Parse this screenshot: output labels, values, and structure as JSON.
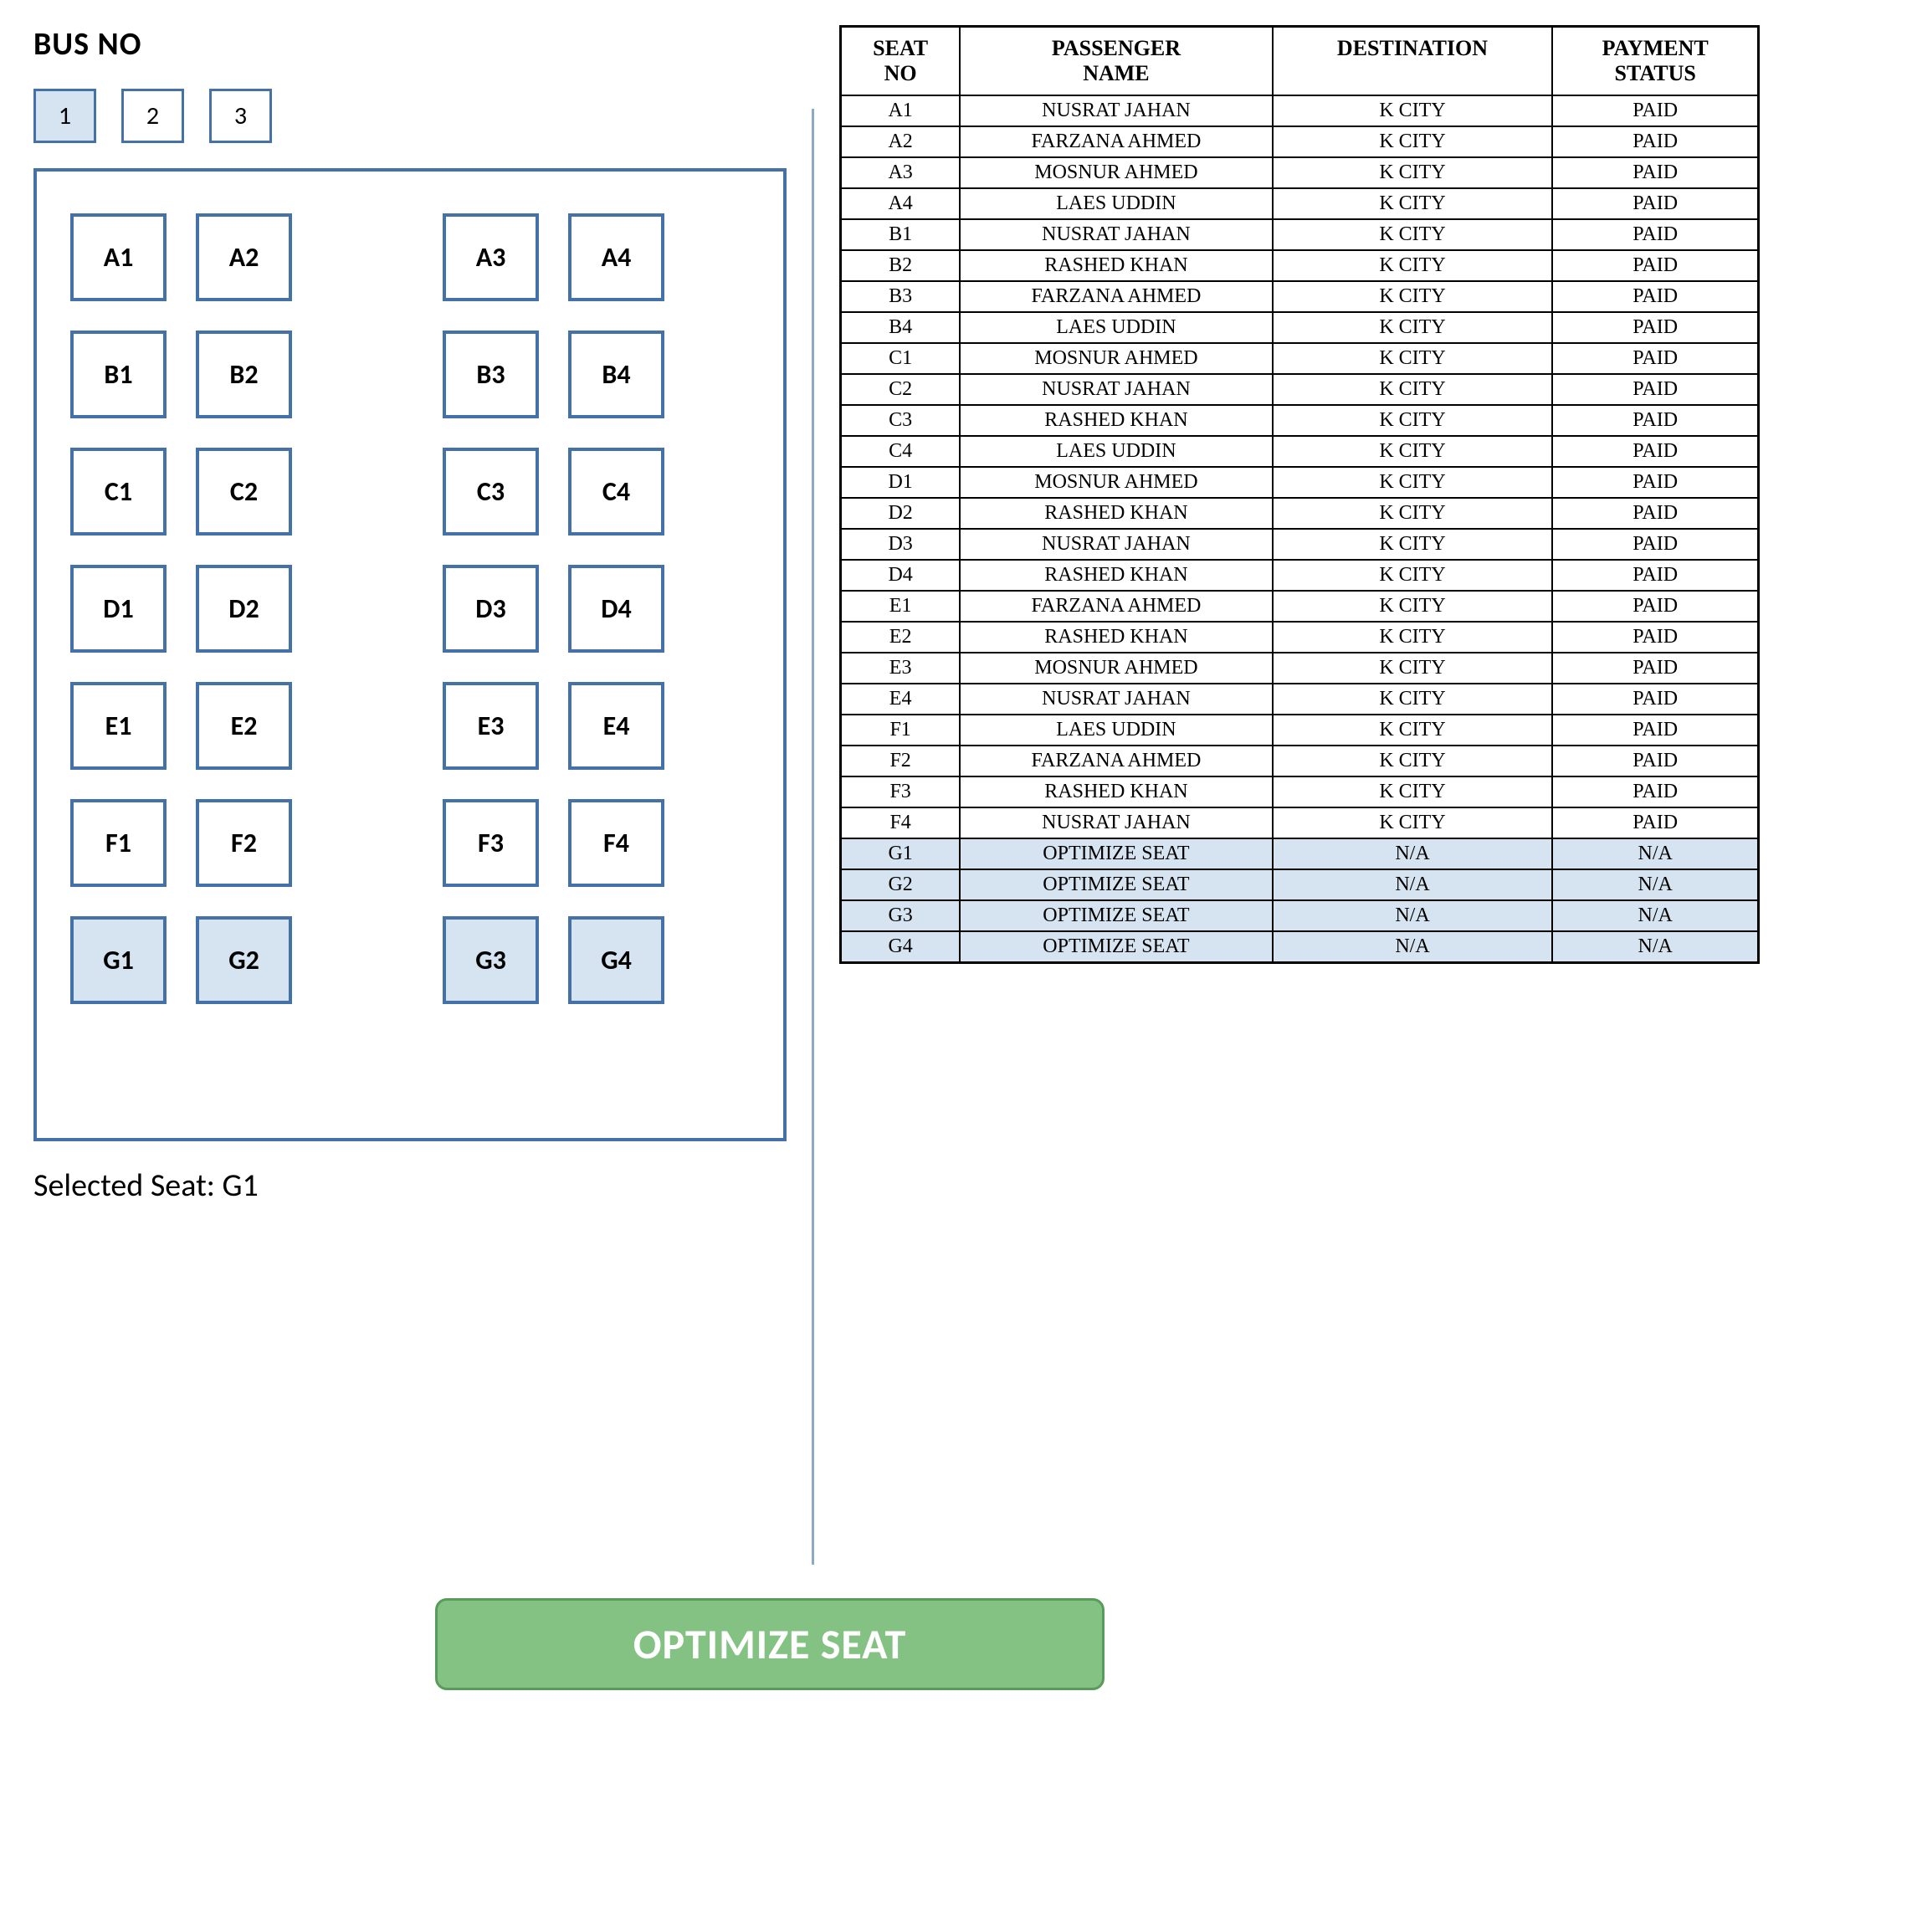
{
  "colors": {
    "seat_border": "#4472a8",
    "seat_bg": "#ffffff",
    "seat_highlight_bg": "#d6e3f0",
    "bus_outline": "#4472a8",
    "tab_border": "#4472a8",
    "tab_selected_bg": "#d6e3f0",
    "tab_bg": "#ffffff",
    "table_highlight_bg": "#d6e3f0",
    "divider": "#8ea9c8",
    "optimize_bg": "#84c284",
    "optimize_border": "#5a9a5a",
    "text": "#000000"
  },
  "header": {
    "bus_no_label": "BUS NO"
  },
  "bus_tabs": [
    {
      "label": "1",
      "selected": true
    },
    {
      "label": "2",
      "selected": false
    },
    {
      "label": "3",
      "selected": false
    }
  ],
  "seats": {
    "rows": [
      {
        "left": [
          "A1",
          "A2"
        ],
        "right": [
          "A3",
          "A4"
        ],
        "highlighted": false
      },
      {
        "left": [
          "B1",
          "B2"
        ],
        "right": [
          "B3",
          "B4"
        ],
        "highlighted": false
      },
      {
        "left": [
          "C1",
          "C2"
        ],
        "right": [
          "C3",
          "C4"
        ],
        "highlighted": false
      },
      {
        "left": [
          "D1",
          "D2"
        ],
        "right": [
          "D3",
          "D4"
        ],
        "highlighted": false
      },
      {
        "left": [
          "E1",
          "E2"
        ],
        "right": [
          "E3",
          "E4"
        ],
        "highlighted": false
      },
      {
        "left": [
          "F1",
          "F2"
        ],
        "right": [
          "F3",
          "F4"
        ],
        "highlighted": false
      },
      {
        "left": [
          "G1",
          "G2"
        ],
        "right": [
          "G3",
          "G4"
        ],
        "highlighted": true
      }
    ]
  },
  "selected_seat": {
    "label": "Selected Seat: G1"
  },
  "table": {
    "headers": [
      "SEAT NO",
      "PASSENGER NAME",
      "DESTINATION",
      "PAYMENT STATUS"
    ],
    "rows": [
      {
        "seat": "A1",
        "name": "NUSRAT JAHAN",
        "dest": "K CITY",
        "status": "PAID",
        "highlighted": false
      },
      {
        "seat": "A2",
        "name": "FARZANA AHMED",
        "dest": "K CITY",
        "status": "PAID",
        "highlighted": false
      },
      {
        "seat": "A3",
        "name": "MOSNUR AHMED",
        "dest": "K CITY",
        "status": "PAID",
        "highlighted": false
      },
      {
        "seat": "A4",
        "name": "LAES UDDIN",
        "dest": "K CITY",
        "status": "PAID",
        "highlighted": false
      },
      {
        "seat": "B1",
        "name": "NUSRAT JAHAN",
        "dest": "K CITY",
        "status": "PAID",
        "highlighted": false
      },
      {
        "seat": "B2",
        "name": "RASHED KHAN",
        "dest": "K CITY",
        "status": "PAID",
        "highlighted": false
      },
      {
        "seat": "B3",
        "name": "FARZANA AHMED",
        "dest": "K CITY",
        "status": "PAID",
        "highlighted": false
      },
      {
        "seat": "B4",
        "name": "LAES UDDIN",
        "dest": "K CITY",
        "status": "PAID",
        "highlighted": false
      },
      {
        "seat": "C1",
        "name": "MOSNUR AHMED",
        "dest": "K CITY",
        "status": "PAID",
        "highlighted": false
      },
      {
        "seat": "C2",
        "name": "NUSRAT JAHAN",
        "dest": "K CITY",
        "status": "PAID",
        "highlighted": false
      },
      {
        "seat": "C3",
        "name": "RASHED KHAN",
        "dest": "K CITY",
        "status": "PAID",
        "highlighted": false
      },
      {
        "seat": "C4",
        "name": "LAES UDDIN",
        "dest": "K CITY",
        "status": "PAID",
        "highlighted": false
      },
      {
        "seat": "D1",
        "name": "MOSNUR AHMED",
        "dest": "K CITY",
        "status": "PAID",
        "highlighted": false
      },
      {
        "seat": "D2",
        "name": "RASHED KHAN",
        "dest": "K CITY",
        "status": "PAID",
        "highlighted": false
      },
      {
        "seat": "D3",
        "name": "NUSRAT JAHAN",
        "dest": "K CITY",
        "status": "PAID",
        "highlighted": false
      },
      {
        "seat": "D4",
        "name": "RASHED KHAN",
        "dest": "K CITY",
        "status": "PAID",
        "highlighted": false
      },
      {
        "seat": "E1",
        "name": "FARZANA AHMED",
        "dest": "K CITY",
        "status": "PAID",
        "highlighted": false
      },
      {
        "seat": "E2",
        "name": "RASHED KHAN",
        "dest": "K CITY",
        "status": "PAID",
        "highlighted": false
      },
      {
        "seat": "E3",
        "name": "MOSNUR AHMED",
        "dest": "K CITY",
        "status": "PAID",
        "highlighted": false
      },
      {
        "seat": "E4",
        "name": "NUSRAT JAHAN",
        "dest": "K CITY",
        "status": "PAID",
        "highlighted": false
      },
      {
        "seat": "F1",
        "name": "LAES UDDIN",
        "dest": "K CITY",
        "status": "PAID",
        "highlighted": false
      },
      {
        "seat": "F2",
        "name": "FARZANA AHMED",
        "dest": "K CITY",
        "status": "PAID",
        "highlighted": false
      },
      {
        "seat": "F3",
        "name": "RASHED KHAN",
        "dest": "K CITY",
        "status": "PAID",
        "highlighted": false
      },
      {
        "seat": "F4",
        "name": "NUSRAT JAHAN",
        "dest": "K CITY",
        "status": "PAID",
        "highlighted": false
      },
      {
        "seat": "G1",
        "name": "OPTIMIZE SEAT",
        "dest": "N/A",
        "status": "N/A",
        "highlighted": true
      },
      {
        "seat": "G2",
        "name": "OPTIMIZE SEAT",
        "dest": "N/A",
        "status": "N/A",
        "highlighted": true
      },
      {
        "seat": "G3",
        "name": "OPTIMIZE SEAT",
        "dest": "N/A",
        "status": "N/A",
        "highlighted": true
      },
      {
        "seat": "G4",
        "name": "OPTIMIZE SEAT",
        "dest": "N/A",
        "status": "N/A",
        "highlighted": true
      }
    ]
  },
  "optimize_button": {
    "label": "OPTIMIZE SEAT"
  }
}
